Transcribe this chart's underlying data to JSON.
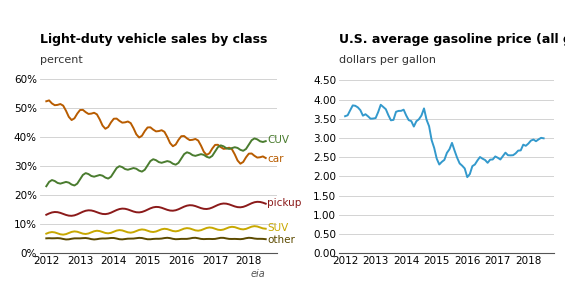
{
  "title1": "Light-duty vehicle sales by class",
  "ylabel1": "percent",
  "title2": "U.S. average gasoline price (all grades)",
  "ylabel2": "dollars per gallon",
  "left_ylim": [
    0,
    0.62
  ],
  "left_yticks": [
    0.0,
    0.1,
    0.2,
    0.3,
    0.4,
    0.5,
    0.6
  ],
  "right_ylim": [
    0,
    4.7
  ],
  "right_yticks": [
    0.0,
    0.5,
    1.0,
    1.5,
    2.0,
    2.5,
    3.0,
    3.5,
    4.0,
    4.5
  ],
  "xlim": [
    2011.8,
    2018.83
  ],
  "xticks": [
    2012,
    2013,
    2014,
    2015,
    2016,
    2017,
    2018
  ],
  "series_colors": {
    "CUV": "#4a7c2f",
    "car": "#b85c00",
    "pickup": "#8b1a1a",
    "SUV": "#c8a800",
    "other": "#5c4a00"
  },
  "gas_color": "#3399cc",
  "background_color": "#ffffff",
  "grid_color": "#cccccc",
  "title_fontsize": 9,
  "label_fontsize": 8,
  "tick_fontsize": 7.5,
  "annotation_fontsize": 7.5,
  "line_width": 1.4
}
